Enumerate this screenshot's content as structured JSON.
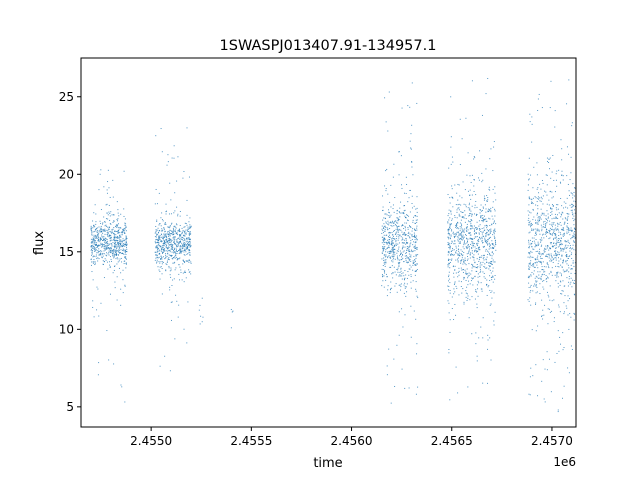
{
  "chart_data": {
    "type": "scatter",
    "title": "1SWASPJ013407.91-134957.1",
    "xlabel": "time",
    "ylabel": "flux",
    "x_offset_label": "1e6",
    "xlim": [
      2454650,
      2457120
    ],
    "ylim": [
      3.7,
      27.5
    ],
    "x_ticks": [
      {
        "value": 2455000,
        "label": "2.4550"
      },
      {
        "value": 2455500,
        "label": "2.4555"
      },
      {
        "value": 2456000,
        "label": "2.4560"
      },
      {
        "value": 2456500,
        "label": "2.4565"
      },
      {
        "value": 2457000,
        "label": "2.4570"
      }
    ],
    "y_ticks": [
      {
        "value": 5,
        "label": "5"
      },
      {
        "value": 10,
        "label": "10"
      },
      {
        "value": 15,
        "label": "15"
      },
      {
        "value": 20,
        "label": "20"
      },
      {
        "value": 25,
        "label": "25"
      }
    ],
    "grid": false,
    "marker_color": "#1f77b4",
    "series": [
      {
        "clusters": [
          {
            "x_start": 2454700,
            "x_end": 2454880,
            "center": 15.6,
            "core_low": 14.3,
            "core_high": 17.0,
            "min": 4.8,
            "max": 20.8,
            "density": 1.0
          },
          {
            "x_start": 2455020,
            "x_end": 2455200,
            "center": 15.5,
            "core_low": 14.2,
            "core_high": 17.0,
            "min": 6.5,
            "max": 24.1,
            "density": 1.0
          },
          {
            "x_start": 2455240,
            "x_end": 2455260,
            "center": 11.0,
            "core_low": 10.0,
            "core_high": 12.0,
            "min": 9.6,
            "max": 12.4,
            "density": 0.1
          },
          {
            "x_start": 2455400,
            "x_end": 2455410,
            "center": 11.0,
            "core_low": 10.2,
            "core_high": 12.3,
            "min": 10.0,
            "max": 12.4,
            "density": 0.1
          },
          {
            "x_start": 2456150,
            "x_end": 2456330,
            "center": 15.5,
            "core_low": 13.0,
            "core_high": 18.0,
            "min": 5.2,
            "max": 26.2,
            "density": 1.0
          },
          {
            "x_start": 2456480,
            "x_end": 2456720,
            "center": 15.6,
            "core_low": 12.5,
            "core_high": 18.5,
            "min": 5.2,
            "max": 26.4,
            "density": 1.0
          },
          {
            "x_start": 2456880,
            "x_end": 2457120,
            "center": 15.6,
            "core_low": 12.0,
            "core_high": 19.0,
            "min": 4.6,
            "max": 26.5,
            "density": 1.0
          }
        ]
      }
    ]
  }
}
